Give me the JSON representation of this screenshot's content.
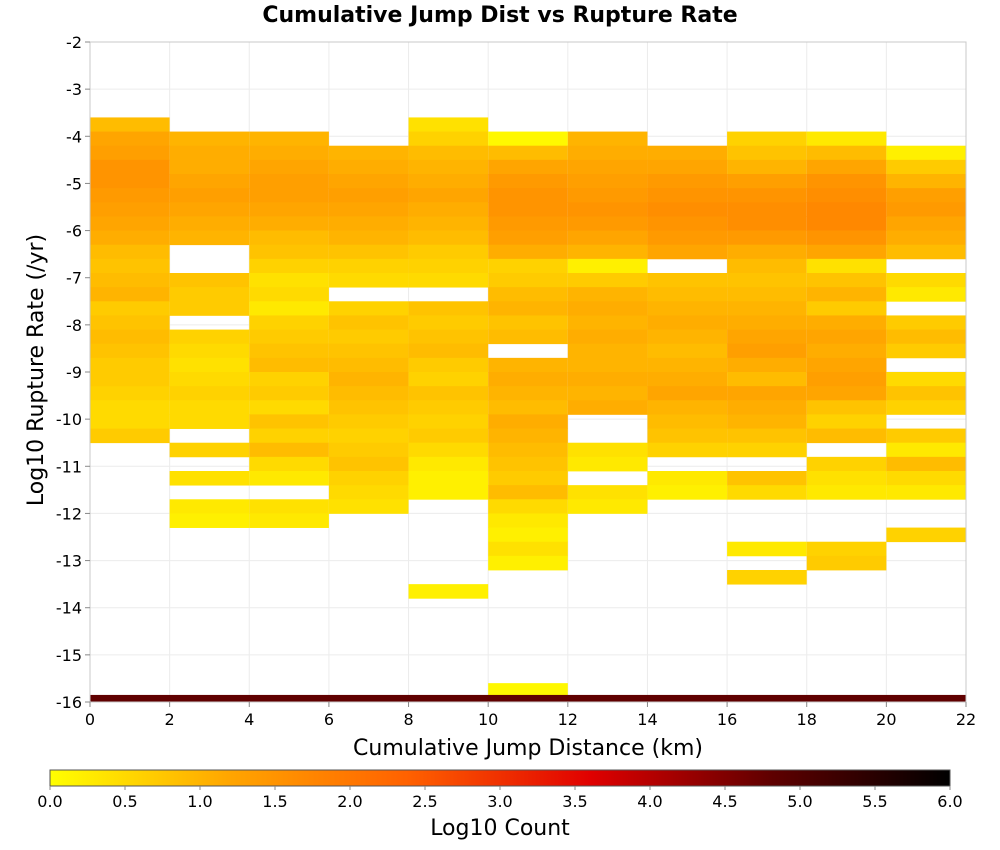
{
  "chart_data": {
    "type": "heatmap",
    "title": "Cumulative Jump Dist vs Rupture Rate",
    "xlabel": "Cumulative Jump Distance (km)",
    "ylabel": "Log10 Rupture Rate (/yr)",
    "colorbar_label": "Log10 Count",
    "x_ticks": [
      "0",
      "2",
      "4",
      "6",
      "8",
      "10",
      "12",
      "14",
      "16",
      "18",
      "20",
      "22"
    ],
    "y_ticks": [
      "-2",
      "-3",
      "-4",
      "-5",
      "-6",
      "-7",
      "-8",
      "-9",
      "-10",
      "-11",
      "-12",
      "-13",
      "-14",
      "-15",
      "-16"
    ],
    "colorbar_ticks": [
      "0.0",
      "0.5",
      "1.0",
      "1.5",
      "2.0",
      "2.5",
      "3.0",
      "3.5",
      "4.0",
      "4.5",
      "5.0",
      "5.5",
      "6.0"
    ],
    "xlim": [
      0,
      22
    ],
    "ylim": [
      -16,
      -2
    ],
    "zlim": [
      0,
      6
    ],
    "x_bin_width": 2,
    "y_bin_height": 0.3,
    "grid": true,
    "colormap": [
      "#ffff00",
      "#ffa500",
      "#ff6000",
      "#e00000",
      "#600000",
      "#000000"
    ],
    "columns": [
      {
        "x0": 0,
        "y_top": -3.6,
        "values": [
          0.9,
          1.2,
          1.3,
          1.5,
          1.5,
          1.4,
          1.3,
          1.2,
          1.1,
          0.9,
          0.8,
          0.9,
          1.0,
          0.7,
          0.8,
          0.9,
          0.8,
          0.7,
          0.7,
          0.6,
          0.5,
          0.5,
          0.7
        ]
      },
      {
        "x0": 2,
        "y_top": -3.9,
        "values": [
          1.0,
          1.1,
          1.1,
          1.2,
          1.3,
          1.2,
          1.1,
          1.0,
          null,
          null,
          0.8,
          0.7,
          0.7,
          null,
          0.6,
          0.5,
          0.4,
          0.5,
          0.6,
          0.5,
          0.5,
          null,
          0.6,
          null,
          0.4,
          null,
          0.3,
          0.2
        ]
      },
      {
        "x0": 4,
        "y_top": -3.9,
        "values": [
          1.0,
          1.1,
          1.2,
          1.3,
          1.3,
          1.2,
          1.1,
          0.9,
          0.8,
          0.6,
          0.4,
          0.5,
          0.3,
          0.6,
          0.7,
          0.8,
          0.9,
          0.6,
          0.7,
          0.5,
          0.8,
          0.6,
          0.9,
          0.5,
          0.3,
          null,
          0.4,
          0.3
        ]
      },
      {
        "x0": 6,
        "y_top": -4.2,
        "values": [
          1.0,
          1.1,
          1.2,
          1.3,
          1.2,
          1.1,
          1.0,
          0.8,
          0.6,
          0.5,
          null,
          0.6,
          0.8,
          0.7,
          0.8,
          0.9,
          1.0,
          0.9,
          0.8,
          0.7,
          0.6,
          0.7,
          0.8,
          0.6,
          0.5,
          0.4
        ]
      },
      {
        "x0": 8,
        "y_top": -3.6,
        "values": [
          0.4,
          0.6,
          0.9,
          1.0,
          1.1,
          1.2,
          1.1,
          1.0,
          0.9,
          0.7,
          0.6,
          0.5,
          null,
          0.8,
          0.7,
          0.8,
          0.9,
          0.7,
          0.6,
          0.8,
          0.7,
          0.6,
          0.7,
          0.5,
          0.3,
          0.2,
          0.2,
          null,
          null,
          null,
          null,
          null,
          null,
          0.2
        ]
      },
      {
        "x0": 10,
        "y_top": -3.9,
        "values": [
          0.1,
          0.9,
          1.2,
          1.4,
          1.5,
          1.5,
          1.4,
          1.3,
          1.1,
          0.6,
          0.7,
          0.9,
          1.0,
          0.8,
          0.9,
          null,
          1.0,
          1.1,
          1.0,
          0.9,
          1.1,
          1.0,
          0.9,
          0.8,
          0.7,
          0.9,
          0.5,
          0.3,
          0.2,
          0.4,
          0.2
        ]
      },
      {
        "x0": 12,
        "y_top": -3.9,
        "values": [
          1.0,
          1.1,
          1.2,
          1.3,
          1.4,
          1.5,
          1.4,
          1.2,
          1.0,
          0.2,
          0.7,
          1.0,
          1.1,
          1.0,
          1.1,
          1.0,
          1.0,
          1.1,
          1.0,
          1.1,
          null,
          null,
          0.4,
          0.3,
          null,
          0.4,
          0.3
        ]
      },
      {
        "x0": 14,
        "y_top": -4.2,
        "values": [
          1.1,
          1.2,
          1.4,
          1.5,
          1.6,
          1.5,
          1.4,
          1.2,
          null,
          0.8,
          0.9,
          1.0,
          1.1,
          1.0,
          0.9,
          1.0,
          1.1,
          1.2,
          1.0,
          0.9,
          0.8,
          0.6,
          null,
          0.3,
          0.2
        ]
      },
      {
        "x0": 16,
        "y_top": -3.9,
        "values": [
          0.6,
          0.8,
          1.0,
          1.3,
          1.5,
          1.6,
          1.6,
          1.4,
          1.1,
          0.9,
          0.8,
          0.9,
          1.0,
          1.1,
          1.2,
          1.3,
          1.1,
          0.9,
          1.2,
          1.1,
          1.0,
          0.8,
          0.6,
          null,
          0.8,
          0.5,
          null,
          null,
          null,
          0.3,
          null,
          0.6
        ]
      },
      {
        "x0": 18,
        "y_top": -3.9,
        "values": [
          0.3,
          0.9,
          1.2,
          1.5,
          1.6,
          1.7,
          1.7,
          1.5,
          1.2,
          0.4,
          0.8,
          1.0,
          0.7,
          1.1,
          1.2,
          1.1,
          1.2,
          1.3,
          1.2,
          0.8,
          0.6,
          0.9,
          null,
          0.6,
          0.4,
          0.3,
          null,
          null,
          null,
          0.6,
          0.7
        ]
      },
      {
        "x0": 20,
        "y_top": -4.2,
        "values": [
          0.2,
          0.7,
          1.0,
          1.3,
          1.4,
          1.2,
          1.1,
          0.9,
          null,
          0.5,
          0.3,
          null,
          0.7,
          0.9,
          0.7,
          null,
          0.5,
          0.8,
          0.6,
          null,
          0.7,
          0.3,
          0.9,
          0.5,
          0.3,
          null,
          null,
          0.6
        ]
      }
    ],
    "bottom_row": {
      "y0": -16,
      "y1": -15.85,
      "value": 4.8
    },
    "extra_cells": [
      {
        "x0": 10,
        "y_top": -15.6,
        "value": 0.1
      }
    ]
  }
}
